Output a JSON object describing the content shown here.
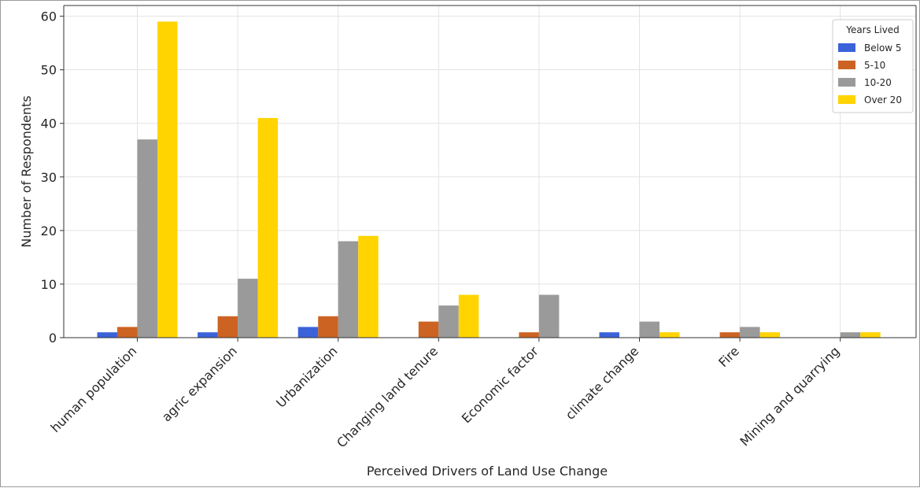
{
  "chart_data": {
    "type": "bar",
    "title": "",
    "xlabel": "Perceived Drivers of Land Use Change",
    "ylabel": "Number of Respondents",
    "ylim": [
      0,
      62
    ],
    "yticks": [
      0,
      10,
      20,
      30,
      40,
      50,
      60
    ],
    "grid": true,
    "legend_title": "Years Lived",
    "legend_position": "top-right",
    "categories": [
      "human population",
      "agric expansion",
      "Urbanization",
      "Changing land tenure",
      "Economic factor",
      "climate change",
      "Fire",
      "Mining and quarrying"
    ],
    "series": [
      {
        "name": "Below 5",
        "color": "#3b62d9",
        "values": [
          1,
          1,
          2,
          0,
          0,
          1,
          0,
          0
        ]
      },
      {
        "name": "5-10",
        "color": "#cc6322",
        "values": [
          2,
          4,
          4,
          3,
          1,
          0,
          1,
          0
        ]
      },
      {
        "name": "10-20",
        "color": "#9a9a9a",
        "values": [
          37,
          11,
          18,
          6,
          8,
          3,
          2,
          1
        ]
      },
      {
        "name": "Over 20",
        "color": "#ffd400",
        "values": [
          59,
          41,
          19,
          8,
          0,
          1,
          1,
          1
        ]
      }
    ]
  }
}
